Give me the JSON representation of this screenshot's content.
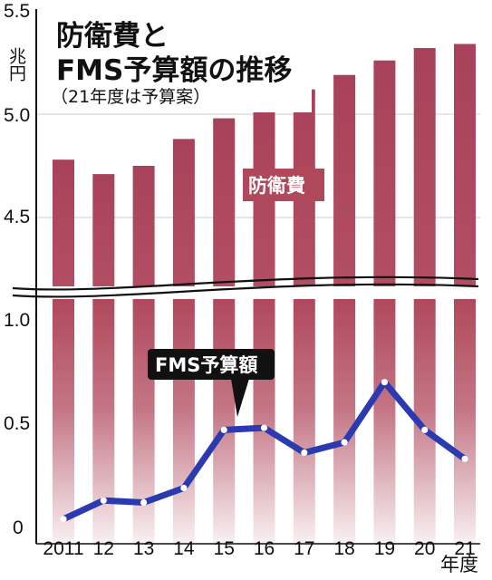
{
  "title_line1": "防衛費と",
  "title_line2": "FMS予算額の推移",
  "subtitle": "（21年度は予算案）",
  "unit_label": "兆円",
  "x_axis_label": "年度",
  "colors": {
    "bar": "#b0485c",
    "line": "#2b3ab0",
    "point_fill": "#ffffff",
    "callout_bg": "#111111",
    "callout_text": "#ffffff"
  },
  "chart_data": {
    "type": "bar+line",
    "title": "防衛費とFMS予算額の推移",
    "subtitle": "（21年度は予算案）",
    "ylabel": "兆円",
    "xlabel": "年度",
    "broken_y_axis": true,
    "categories": [
      "2011",
      "12",
      "13",
      "14",
      "15",
      "16",
      "17",
      "18",
      "19",
      "20",
      "21"
    ],
    "y_ticks_upper": [
      "5.5",
      "5.0",
      "4.5"
    ],
    "y_ticks_lower": [
      "1.0",
      "0.5",
      "0"
    ],
    "upper_range": [
      4.35,
      5.5
    ],
    "lower_range": [
      0,
      1.2
    ],
    "series": [
      {
        "name": "防衛費",
        "type": "bar",
        "values": [
          4.78,
          4.71,
          4.75,
          4.88,
          4.98,
          5.05,
          5.12,
          5.19,
          5.26,
          5.32,
          5.34
        ]
      },
      {
        "name": "FMS予算額",
        "type": "line",
        "values": [
          0.04,
          0.13,
          0.12,
          0.19,
          0.47,
          0.48,
          0.36,
          0.41,
          0.7,
          0.47,
          0.33
        ]
      }
    ]
  }
}
